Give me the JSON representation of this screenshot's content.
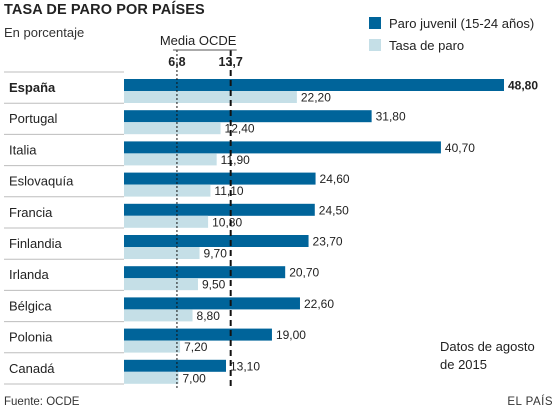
{
  "header": {
    "title": "TASA DE PARO POR PAÍSES",
    "subtitle": "En porcentaje"
  },
  "footer": {
    "source": "Fuente: OCDE",
    "brand": "EL PAÍS",
    "note_line1": "Datos de agosto",
    "note_line2": "de 2015"
  },
  "colors": {
    "youth": "#00649a",
    "total": "#c5dfe7",
    "ref_line": "#111111",
    "separator": "#bdbdbd"
  },
  "chart_data": {
    "type": "bar",
    "orientation": "horizontal",
    "title": "TASA DE PARO POR PAÍSES",
    "subtitle": "En porcentaje",
    "categories": [
      "España",
      "Portugal",
      "Italia",
      "Eslovaquía",
      "Francia",
      "Finlandia",
      "Irlanda",
      "Bélgica",
      "Polonia",
      "Canadá"
    ],
    "highlight_category": "España",
    "series": [
      {
        "name": "Paro juvenil (15-24 años)",
        "values": [
          48.8,
          31.8,
          40.7,
          24.6,
          24.5,
          23.7,
          20.7,
          22.6,
          19.0,
          13.1
        ],
        "labels": [
          "48,80",
          "31,80",
          "40,70",
          "24,60",
          "24,50",
          "23,70",
          "20,70",
          "22,60",
          "19,00",
          "13,10"
        ]
      },
      {
        "name": "Tasa de paro",
        "values": [
          22.2,
          12.4,
          11.9,
          11.1,
          10.8,
          9.7,
          9.5,
          8.8,
          7.2,
          7.0
        ],
        "labels": [
          "22,20",
          "12,40",
          "11,90",
          "11,10",
          "10,80",
          "9,70",
          "9,50",
          "8,80",
          "7,20",
          "7,00"
        ]
      }
    ],
    "reference": {
      "label": "Media OCDE",
      "values": [
        6.8,
        13.7
      ],
      "tick_labels": [
        "6,8",
        "13,7"
      ]
    },
    "xlim": [
      0,
      48.8
    ],
    "legend_position": "top-right",
    "grid": false
  }
}
